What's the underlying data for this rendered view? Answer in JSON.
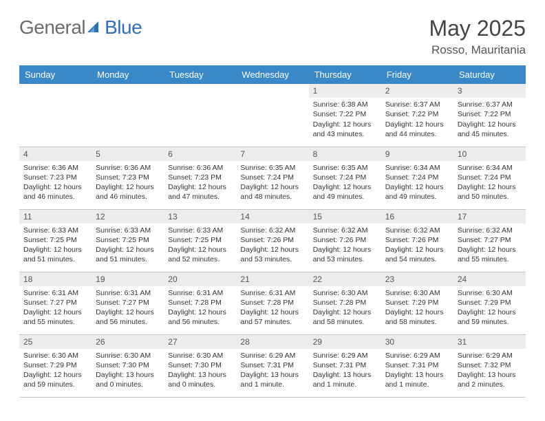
{
  "brand": {
    "part1": "General",
    "part2": "Blue"
  },
  "title": "May 2025",
  "location": "Rosso, Mauritania",
  "colors": {
    "header_bg": "#3b88c9",
    "header_fg": "#ffffff",
    "daynum_bg": "#ececec",
    "daynum_fg": "#555555",
    "text": "#333333",
    "rule": "#c5c5c5",
    "logo_gray": "#6b6b6b",
    "logo_blue": "#2f6fb5"
  },
  "weekdays": [
    "Sunday",
    "Monday",
    "Tuesday",
    "Wednesday",
    "Thursday",
    "Friday",
    "Saturday"
  ],
  "weeks": [
    [
      null,
      null,
      null,
      null,
      {
        "n": "1",
        "sr": "Sunrise: 6:38 AM",
        "ss": "Sunset: 7:22 PM",
        "dl": "Daylight: 12 hours and 43 minutes."
      },
      {
        "n": "2",
        "sr": "Sunrise: 6:37 AM",
        "ss": "Sunset: 7:22 PM",
        "dl": "Daylight: 12 hours and 44 minutes."
      },
      {
        "n": "3",
        "sr": "Sunrise: 6:37 AM",
        "ss": "Sunset: 7:22 PM",
        "dl": "Daylight: 12 hours and 45 minutes."
      }
    ],
    [
      {
        "n": "4",
        "sr": "Sunrise: 6:36 AM",
        "ss": "Sunset: 7:23 PM",
        "dl": "Daylight: 12 hours and 46 minutes."
      },
      {
        "n": "5",
        "sr": "Sunrise: 6:36 AM",
        "ss": "Sunset: 7:23 PM",
        "dl": "Daylight: 12 hours and 46 minutes."
      },
      {
        "n": "6",
        "sr": "Sunrise: 6:36 AM",
        "ss": "Sunset: 7:23 PM",
        "dl": "Daylight: 12 hours and 47 minutes."
      },
      {
        "n": "7",
        "sr": "Sunrise: 6:35 AM",
        "ss": "Sunset: 7:24 PM",
        "dl": "Daylight: 12 hours and 48 minutes."
      },
      {
        "n": "8",
        "sr": "Sunrise: 6:35 AM",
        "ss": "Sunset: 7:24 PM",
        "dl": "Daylight: 12 hours and 49 minutes."
      },
      {
        "n": "9",
        "sr": "Sunrise: 6:34 AM",
        "ss": "Sunset: 7:24 PM",
        "dl": "Daylight: 12 hours and 49 minutes."
      },
      {
        "n": "10",
        "sr": "Sunrise: 6:34 AM",
        "ss": "Sunset: 7:24 PM",
        "dl": "Daylight: 12 hours and 50 minutes."
      }
    ],
    [
      {
        "n": "11",
        "sr": "Sunrise: 6:33 AM",
        "ss": "Sunset: 7:25 PM",
        "dl": "Daylight: 12 hours and 51 minutes."
      },
      {
        "n": "12",
        "sr": "Sunrise: 6:33 AM",
        "ss": "Sunset: 7:25 PM",
        "dl": "Daylight: 12 hours and 51 minutes."
      },
      {
        "n": "13",
        "sr": "Sunrise: 6:33 AM",
        "ss": "Sunset: 7:25 PM",
        "dl": "Daylight: 12 hours and 52 minutes."
      },
      {
        "n": "14",
        "sr": "Sunrise: 6:32 AM",
        "ss": "Sunset: 7:26 PM",
        "dl": "Daylight: 12 hours and 53 minutes."
      },
      {
        "n": "15",
        "sr": "Sunrise: 6:32 AM",
        "ss": "Sunset: 7:26 PM",
        "dl": "Daylight: 12 hours and 53 minutes."
      },
      {
        "n": "16",
        "sr": "Sunrise: 6:32 AM",
        "ss": "Sunset: 7:26 PM",
        "dl": "Daylight: 12 hours and 54 minutes."
      },
      {
        "n": "17",
        "sr": "Sunrise: 6:32 AM",
        "ss": "Sunset: 7:27 PM",
        "dl": "Daylight: 12 hours and 55 minutes."
      }
    ],
    [
      {
        "n": "18",
        "sr": "Sunrise: 6:31 AM",
        "ss": "Sunset: 7:27 PM",
        "dl": "Daylight: 12 hours and 55 minutes."
      },
      {
        "n": "19",
        "sr": "Sunrise: 6:31 AM",
        "ss": "Sunset: 7:27 PM",
        "dl": "Daylight: 12 hours and 56 minutes."
      },
      {
        "n": "20",
        "sr": "Sunrise: 6:31 AM",
        "ss": "Sunset: 7:28 PM",
        "dl": "Daylight: 12 hours and 56 minutes."
      },
      {
        "n": "21",
        "sr": "Sunrise: 6:31 AM",
        "ss": "Sunset: 7:28 PM",
        "dl": "Daylight: 12 hours and 57 minutes."
      },
      {
        "n": "22",
        "sr": "Sunrise: 6:30 AM",
        "ss": "Sunset: 7:28 PM",
        "dl": "Daylight: 12 hours and 58 minutes."
      },
      {
        "n": "23",
        "sr": "Sunrise: 6:30 AM",
        "ss": "Sunset: 7:29 PM",
        "dl": "Daylight: 12 hours and 58 minutes."
      },
      {
        "n": "24",
        "sr": "Sunrise: 6:30 AM",
        "ss": "Sunset: 7:29 PM",
        "dl": "Daylight: 12 hours and 59 minutes."
      }
    ],
    [
      {
        "n": "25",
        "sr": "Sunrise: 6:30 AM",
        "ss": "Sunset: 7:29 PM",
        "dl": "Daylight: 12 hours and 59 minutes."
      },
      {
        "n": "26",
        "sr": "Sunrise: 6:30 AM",
        "ss": "Sunset: 7:30 PM",
        "dl": "Daylight: 13 hours and 0 minutes."
      },
      {
        "n": "27",
        "sr": "Sunrise: 6:30 AM",
        "ss": "Sunset: 7:30 PM",
        "dl": "Daylight: 13 hours and 0 minutes."
      },
      {
        "n": "28",
        "sr": "Sunrise: 6:29 AM",
        "ss": "Sunset: 7:31 PM",
        "dl": "Daylight: 13 hours and 1 minute."
      },
      {
        "n": "29",
        "sr": "Sunrise: 6:29 AM",
        "ss": "Sunset: 7:31 PM",
        "dl": "Daylight: 13 hours and 1 minute."
      },
      {
        "n": "30",
        "sr": "Sunrise: 6:29 AM",
        "ss": "Sunset: 7:31 PM",
        "dl": "Daylight: 13 hours and 1 minute."
      },
      {
        "n": "31",
        "sr": "Sunrise: 6:29 AM",
        "ss": "Sunset: 7:32 PM",
        "dl": "Daylight: 13 hours and 2 minutes."
      }
    ]
  ]
}
